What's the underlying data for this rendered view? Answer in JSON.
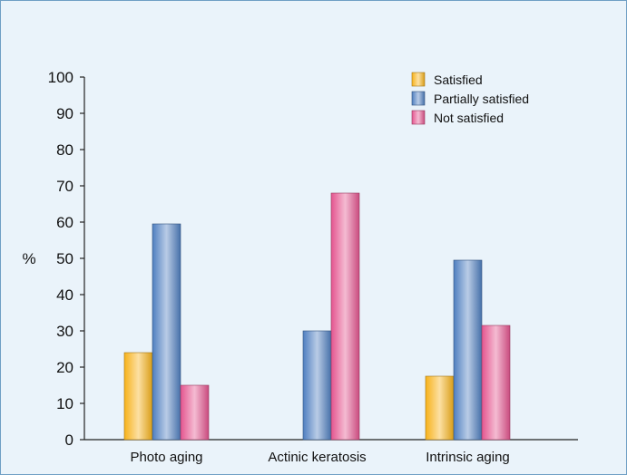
{
  "chart_data": {
    "type": "bar",
    "title": "",
    "xlabel": "",
    "ylabel": "%",
    "ylim": [
      0,
      100
    ],
    "yticks": [
      0,
      10,
      20,
      30,
      40,
      50,
      60,
      70,
      80,
      90,
      100
    ],
    "categories": [
      "Photo aging",
      "Actinic keratosis",
      "Intrinsic aging"
    ],
    "series": [
      {
        "name": "Satisfied",
        "values": [
          24,
          0,
          17.5
        ],
        "color": "#f7b21a"
      },
      {
        "name": "Partially satisfied",
        "values": [
          59.5,
          30,
          49.5
        ],
        "color": "#4f7fc0"
      },
      {
        "name": "Not satisfied",
        "values": [
          15,
          68,
          31.5
        ],
        "color": "#e4558f"
      }
    ],
    "grid": false,
    "legend_position": "top-right"
  }
}
